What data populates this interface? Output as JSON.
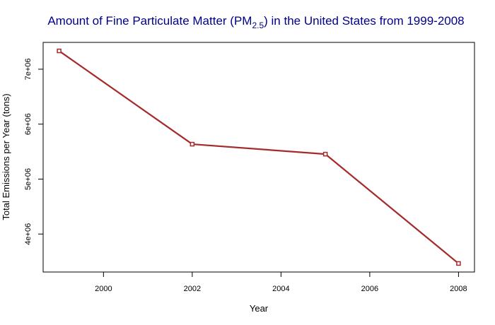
{
  "chart_data": {
    "type": "line",
    "title": {
      "prefix": "Amount of Fine Particulate Matter (PM",
      "subscript": "2.5",
      "suffix": ") in the United States from 1999-2008"
    },
    "xlabel": "Year",
    "ylabel": "Total Emissions per Year (tons)",
    "x": [
      1999,
      2002,
      2005,
      2008
    ],
    "series": [
      {
        "values": [
          7332967,
          5635780,
          5454703,
          3464206
        ]
      }
    ],
    "xlim": [
      1998.64,
      2008.36
    ],
    "ylim": [
      3309000,
      7488000
    ],
    "x_ticks": [
      {
        "value": 2000,
        "label": "2000"
      },
      {
        "value": 2002,
        "label": "2002"
      },
      {
        "value": 2004,
        "label": "2004"
      },
      {
        "value": 2006,
        "label": "2006"
      },
      {
        "value": 2008,
        "label": "2008"
      }
    ],
    "y_ticks": [
      {
        "value": 4000000,
        "label": "4e+06"
      },
      {
        "value": 5000000,
        "label": "5e+06"
      },
      {
        "value": 6000000,
        "label": "6e+06"
      },
      {
        "value": 7000000,
        "label": "7e+06"
      }
    ],
    "grid": false,
    "colors": {
      "title": "#00008b",
      "line": "#a52a2a",
      "marker": "#a52a2a",
      "axis": "#000000"
    }
  }
}
